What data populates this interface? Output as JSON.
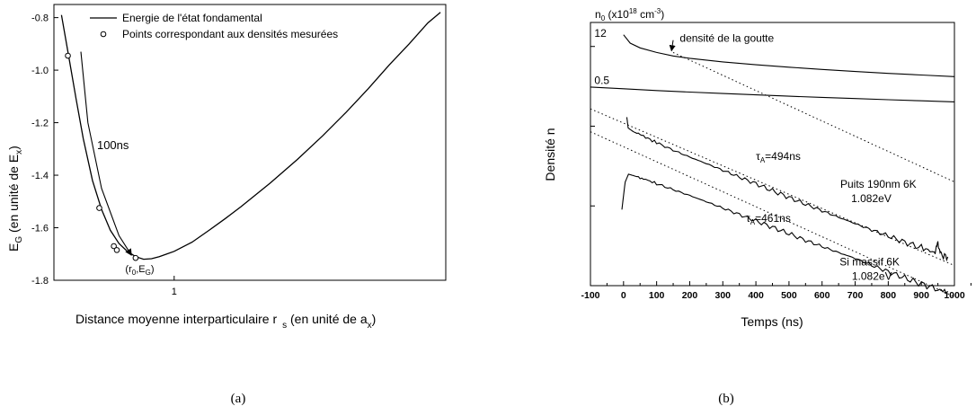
{
  "chart_data": [
    {
      "panel": "a",
      "type": "line",
      "caption": "(a)",
      "xlabel": {
        "main": "Distance moyenne interparticulaire r",
        "sub": "s",
        "tail": " (en unité de a",
        "sub2": "x",
        "close": ")"
      },
      "ylabel": {
        "main": "E",
        "sub": "G",
        "tail": " (en unité de E",
        "sub2": "x",
        "close": ")"
      },
      "xscale": "log",
      "xlim": [
        0.72,
        2.1
      ],
      "ylim": [
        -1.8,
        -0.75
      ],
      "xticks": [
        {
          "value": 1,
          "label": "1"
        }
      ],
      "yticks": [
        {
          "value": -0.8,
          "label": "-0.8"
        },
        {
          "value": -1.0,
          "label": "-1.0"
        },
        {
          "value": -1.2,
          "label": "-1.2"
        },
        {
          "value": -1.4,
          "label": "-1.4"
        },
        {
          "value": -1.6,
          "label": "-1.6"
        },
        {
          "value": -1.8,
          "label": "-1.8"
        }
      ],
      "legend": [
        {
          "kind": "line",
          "label": "Energie de l'état fondamental"
        },
        {
          "kind": "circle",
          "label": "Points correspondant aux densités mesurées"
        }
      ],
      "series": [
        {
          "name": "Energie de l'état fondamental",
          "x": [
            0.735,
            0.75,
            0.765,
            0.78,
            0.8,
            0.82,
            0.84,
            0.86,
            0.88,
            0.9,
            0.92,
            0.94,
            0.96,
            0.98,
            1.0,
            1.05,
            1.1,
            1.15,
            1.2,
            1.3,
            1.4,
            1.5,
            1.6,
            1.7,
            1.8,
            1.9,
            2.0,
            2.07
          ],
          "y": [
            -0.79,
            -0.95,
            -1.11,
            -1.26,
            -1.42,
            -1.53,
            -1.61,
            -1.66,
            -1.69,
            -1.71,
            -1.72,
            -1.718,
            -1.71,
            -1.7,
            -1.69,
            -1.655,
            -1.61,
            -1.565,
            -1.52,
            -1.43,
            -1.34,
            -1.25,
            -1.16,
            -1.07,
            -0.98,
            -0.9,
            -0.82,
            -0.78
          ]
        },
        {
          "name": "Points correspondant aux densités mesurées",
          "x": [
            0.748,
            0.815,
            0.848,
            0.855,
            0.9
          ],
          "y": [
            -0.945,
            -1.525,
            -1.67,
            -1.685,
            -1.715
          ]
        }
      ],
      "annotations": [
        {
          "text": "100ns",
          "x": 0.81,
          "y": -1.3
        },
        {
          "text": "(r",
          "sub": "0",
          "mid": ",E",
          "sub2": "G",
          "close": ")",
          "x": 0.875,
          "y": -1.77
        }
      ],
      "arrow": {
        "x": [
          0.775,
          0.79,
          0.82,
          0.86,
          0.89
        ],
        "y": [
          -0.93,
          -1.2,
          -1.45,
          -1.63,
          -1.705
        ]
      }
    },
    {
      "panel": "b",
      "type": "line",
      "caption": "(b)",
      "xlabel": "Temps (ns)",
      "ylabel": "Densité n",
      "right_axis_title": {
        "main": "n",
        "sub": "0",
        "mid": " (x10",
        "sup": "18",
        "tail": " cm",
        "sup2": "-3",
        "close": ")"
      },
      "yscale": "log",
      "xlim": [
        -100,
        1000
      ],
      "ylim": [
        0.01,
        20
      ],
      "xticks": [
        -100,
        0,
        100,
        200,
        300,
        400,
        500,
        600,
        700,
        800,
        900,
        1000
      ],
      "series": [
        {
          "name": "12",
          "x": [
            0,
            20,
            50,
            100,
            150,
            200,
            300,
            400,
            500,
            600,
            700,
            800,
            900,
            1000
          ],
          "y": [
            14,
            11,
            9.6,
            8.4,
            7.6,
            7.1,
            6.4,
            5.9,
            5.5,
            5.15,
            4.85,
            4.6,
            4.38,
            4.18
          ]
        },
        {
          "name": "0.5",
          "x": [
            -100,
            0,
            100,
            200,
            300,
            400,
            500,
            600,
            700,
            800,
            900,
            1000
          ],
          "y": [
            3.1,
            2.95,
            2.8,
            2.68,
            2.57,
            2.47,
            2.38,
            2.3,
            2.22,
            2.15,
            2.08,
            2.02
          ]
        },
        {
          "name": "Puits 190nm 6K 1.082eV",
          "x": [
            10,
            14,
            30,
            60,
            100,
            150,
            200,
            250,
            300,
            350,
            400,
            450,
            500,
            550,
            600,
            650,
            700,
            750,
            800,
            850,
            900,
            940,
            950,
            960,
            980
          ],
          "y": [
            1.3,
            0.95,
            0.85,
            0.75,
            0.62,
            0.5,
            0.41,
            0.34,
            0.28,
            0.23,
            0.19,
            0.155,
            0.128,
            0.105,
            0.087,
            0.072,
            0.06,
            0.05,
            0.042,
            0.035,
            0.03,
            0.026,
            0.034,
            0.024,
            0.023
          ]
        },
        {
          "name": "Si massif 6K 1.082eV",
          "x": [
            -5,
            5,
            15,
            30,
            60,
            100,
            150,
            200,
            250,
            300,
            350,
            400,
            450,
            500,
            550,
            600,
            650,
            700,
            750,
            800,
            850,
            900,
            950,
            980
          ],
          "y": [
            0.09,
            0.2,
            0.25,
            0.24,
            0.22,
            0.19,
            0.16,
            0.135,
            0.113,
            0.094,
            0.078,
            0.065,
            0.054,
            0.045,
            0.037,
            0.031,
            0.026,
            0.022,
            0.018,
            0.015,
            0.0125,
            0.0105,
            0.009,
            0.0085
          ]
        },
        {
          "name": "fit τA=494ns",
          "dashed": true,
          "x": [
            -100,
            1000
          ],
          "y": [
            1.65,
            0.0179
          ]
        },
        {
          "name": "fit τA=461ns",
          "dashed": true,
          "x": [
            -100,
            1000
          ],
          "y": [
            0.85,
            0.00726
          ]
        },
        {
          "name": "fit densité de la goutte",
          "dashed": true,
          "x": [
            150,
            1000
          ],
          "y": [
            8.4,
            0.2
          ]
        }
      ],
      "annotations": [
        {
          "text": "12",
          "x": -88,
          "y": 13.2
        },
        {
          "text": "0.5",
          "x": -88,
          "y": 3.4
        },
        {
          "text": "densité de la goutte",
          "x": 170,
          "y": 11.5
        },
        {
          "text": "τ",
          "sub": "A",
          "tail": "=494ns",
          "x": 400,
          "y": 0.38
        },
        {
          "text": "Puits 190nm 6K",
          "x": 655,
          "y": 0.17
        },
        {
          "text": "1.082eV",
          "x": 688,
          "y": 0.112
        },
        {
          "text": "τ",
          "sub": "A",
          "tail": "=461ns",
          "x": 370,
          "y": 0.063
        },
        {
          "text": "Si massif 6K",
          "x": 653,
          "y": 0.018
        },
        {
          "text": "1.082eV",
          "x": 690,
          "y": 0.0118
        }
      ],
      "arrow": {
        "from": [
          150,
          12
        ],
        "to": [
          145,
          8.8
        ]
      }
    }
  ]
}
